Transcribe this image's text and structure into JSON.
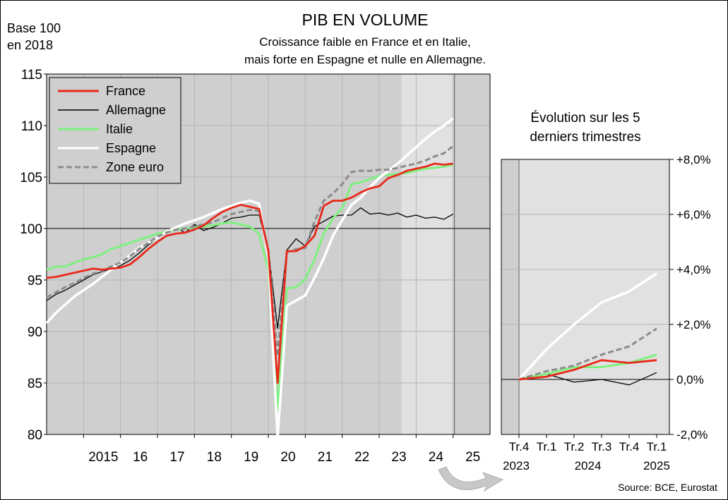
{
  "chart_data": [
    {
      "type": "line",
      "title": "PIB EN VOLUME",
      "subtitle": [
        "Croissance faible en France et en Italie,",
        "mais forte en Espagne et nulle en Allemagne."
      ],
      "ylabel": [
        "Base 100",
        "en 2018"
      ],
      "xlim": [
        2014,
        2026
      ],
      "ylim": [
        80,
        115
      ],
      "yticks": [
        80,
        85,
        90,
        95,
        100,
        105,
        110,
        115
      ],
      "xtick_labels": [
        {
          "x": 2015,
          "label": "2015"
        },
        {
          "x": 2016,
          "label": "16"
        },
        {
          "x": 2017,
          "label": "17"
        },
        {
          "x": 2018,
          "label": "18"
        },
        {
          "x": 2019,
          "label": "19"
        },
        {
          "x": 2020,
          "label": "20"
        },
        {
          "x": 2021,
          "label": "21"
        },
        {
          "x": 2022,
          "label": "22"
        },
        {
          "x": 2023,
          "label": "23"
        },
        {
          "x": 2024,
          "label": "24"
        },
        {
          "x": 2025,
          "label": "25"
        }
      ],
      "reference_line": 100,
      "shaded_recent": [
        2023.6,
        2025.0
      ],
      "grid": true,
      "legend_position": "top-left",
      "series": [
        {
          "name": "Allemagne",
          "color": "#000000",
          "width": 1.3,
          "dash": "",
          "x": [
            2014.0,
            2014.25,
            2014.5,
            2014.75,
            2015.0,
            2015.25,
            2015.5,
            2015.75,
            2016.0,
            2016.25,
            2016.5,
            2016.75,
            2017.0,
            2017.25,
            2017.5,
            2017.75,
            2018.0,
            2018.25,
            2018.5,
            2018.75,
            2019.0,
            2019.25,
            2019.5,
            2019.75,
            2020.0,
            2020.25,
            2020.5,
            2020.75,
            2021.0,
            2021.25,
            2021.5,
            2021.75,
            2022.0,
            2022.25,
            2022.5,
            2022.75,
            2023.0,
            2023.25,
            2023.5,
            2023.75,
            2024.0,
            2024.25,
            2024.5,
            2024.75,
            2025.0
          ],
          "y": [
            93.0,
            93.6,
            94.0,
            94.5,
            95.0,
            95.5,
            95.8,
            96.1,
            96.4,
            96.9,
            97.6,
            98.4,
            99.1,
            99.6,
            100.1,
            99.6,
            100.4,
            99.8,
            100.1,
            100.5,
            101.0,
            101.1,
            101.3,
            101.3,
            98.0,
            90.3,
            97.9,
            99.0,
            98.3,
            100.2,
            100.7,
            101.2,
            101.3,
            101.3,
            102.0,
            101.4,
            101.5,
            101.3,
            101.5,
            101.1,
            101.3,
            101.0,
            101.1,
            100.9,
            101.4
          ]
        },
        {
          "name": "Italie",
          "color": "#7ff07f",
          "width": 3.0,
          "dash": "",
          "x": [
            2014.0,
            2014.25,
            2014.5,
            2014.75,
            2015.0,
            2015.25,
            2015.5,
            2015.75,
            2016.0,
            2016.25,
            2016.5,
            2016.75,
            2017.0,
            2017.25,
            2017.5,
            2017.75,
            2018.0,
            2018.25,
            2018.5,
            2018.75,
            2019.0,
            2019.25,
            2019.5,
            2019.75,
            2020.0,
            2020.25,
            2020.5,
            2020.75,
            2021.0,
            2021.25,
            2021.5,
            2021.75,
            2022.0,
            2022.25,
            2022.5,
            2022.75,
            2023.0,
            2023.25,
            2023.5,
            2023.75,
            2024.0,
            2024.25,
            2024.5,
            2024.75,
            2025.0
          ],
          "y": [
            96.0,
            96.3,
            96.3,
            96.7,
            97.0,
            97.2,
            97.5,
            98.0,
            98.3,
            98.6,
            98.9,
            99.2,
            99.5,
            99.7,
            99.9,
            100.0,
            100.1,
            100.2,
            100.3,
            100.5,
            100.6,
            100.4,
            100.2,
            99.5,
            96.0,
            82.5,
            94.2,
            94.3,
            95.1,
            97.0,
            99.5,
            101.0,
            102.0,
            104.3,
            104.5,
            104.8,
            105.1,
            105.2,
            105.3,
            105.4,
            105.6,
            105.8,
            105.9,
            106.0,
            106.2
          ]
        },
        {
          "name": "Espagne",
          "color": "#ffffff",
          "width": 3.5,
          "dash": "",
          "x": [
            2014.0,
            2014.25,
            2014.5,
            2014.75,
            2015.0,
            2015.25,
            2015.5,
            2015.75,
            2016.0,
            2016.25,
            2016.5,
            2016.75,
            2017.0,
            2017.25,
            2017.5,
            2017.75,
            2018.0,
            2018.25,
            2018.5,
            2018.75,
            2019.0,
            2019.25,
            2019.5,
            2019.75,
            2020.0,
            2020.25,
            2020.5,
            2020.75,
            2021.0,
            2021.25,
            2021.5,
            2021.75,
            2022.0,
            2022.25,
            2022.5,
            2022.75,
            2023.0,
            2023.25,
            2023.5,
            2023.75,
            2024.0,
            2024.25,
            2024.5,
            2024.75,
            2025.0
          ],
          "y": [
            90.8,
            91.8,
            92.6,
            93.4,
            94.0,
            94.6,
            95.3,
            96.0,
            96.7,
            97.4,
            98.1,
            98.6,
            99.1,
            99.7,
            100.1,
            100.5,
            100.8,
            101.1,
            101.5,
            101.9,
            102.2,
            102.5,
            102.7,
            102.4,
            97.3,
            79.6,
            92.5,
            93.0,
            93.5,
            95.2,
            97.1,
            99.3,
            100.8,
            102.3,
            103.0,
            104.0,
            104.9,
            105.6,
            106.3,
            107.1,
            107.9,
            108.7,
            109.4,
            110.0,
            110.7
          ]
        },
        {
          "name": "Zone euro",
          "color": "#8c8c8c",
          "width": 3.0,
          "dash": "8,4",
          "x": [
            2014.0,
            2014.25,
            2014.5,
            2014.75,
            2015.0,
            2015.25,
            2015.5,
            2015.75,
            2016.0,
            2016.25,
            2016.5,
            2016.75,
            2017.0,
            2017.25,
            2017.5,
            2017.75,
            2018.0,
            2018.25,
            2018.5,
            2018.75,
            2019.0,
            2019.25,
            2019.5,
            2019.75,
            2020.0,
            2020.25,
            2020.5,
            2020.75,
            2021.0,
            2021.25,
            2021.5,
            2021.75,
            2022.0,
            2022.25,
            2022.5,
            2022.75,
            2023.0,
            2023.25,
            2023.5,
            2023.75,
            2024.0,
            2024.25,
            2024.5,
            2024.75,
            2025.0
          ],
          "y": [
            93.3,
            93.8,
            94.3,
            94.7,
            95.2,
            95.6,
            95.9,
            96.3,
            96.7,
            97.3,
            98.0,
            98.6,
            99.2,
            99.6,
            99.9,
            100.0,
            100.2,
            100.4,
            100.6,
            101.0,
            101.4,
            101.6,
            101.8,
            101.7,
            98.0,
            87.6,
            97.7,
            98.0,
            98.1,
            100.7,
            102.7,
            103.4,
            104.3,
            105.5,
            105.6,
            105.6,
            105.7,
            105.7,
            105.9,
            106.1,
            106.3,
            106.6,
            107.0,
            107.3,
            108.0
          ]
        },
        {
          "name": "France",
          "color": "#e8281a",
          "width": 2.8,
          "dash": "",
          "x": [
            2014.0,
            2014.25,
            2014.5,
            2014.75,
            2015.0,
            2015.25,
            2015.5,
            2015.75,
            2016.0,
            2016.25,
            2016.5,
            2016.75,
            2017.0,
            2017.25,
            2017.5,
            2017.75,
            2018.0,
            2018.25,
            2018.5,
            2018.75,
            2019.0,
            2019.25,
            2019.5,
            2019.75,
            2020.0,
            2020.25,
            2020.5,
            2020.75,
            2021.0,
            2021.25,
            2021.5,
            2021.75,
            2022.0,
            2022.25,
            2022.5,
            2022.75,
            2023.0,
            2023.25,
            2023.5,
            2023.75,
            2024.0,
            2024.25,
            2024.5,
            2024.75,
            2025.0
          ],
          "y": [
            95.2,
            95.3,
            95.5,
            95.7,
            95.9,
            96.1,
            96.0,
            96.1,
            96.2,
            96.5,
            97.2,
            98.0,
            98.7,
            99.3,
            99.5,
            99.6,
            99.9,
            100.3,
            101.0,
            101.6,
            102.0,
            102.3,
            102.1,
            101.9,
            97.8,
            85.0,
            97.8,
            97.8,
            98.3,
            99.3,
            102.2,
            102.7,
            102.7,
            103.0,
            103.5,
            103.9,
            104.1,
            104.9,
            105.2,
            105.6,
            105.8,
            106.0,
            106.3,
            106.2,
            106.3
          ]
        }
      ]
    },
    {
      "type": "line",
      "title": [
        "Évolution sur les 5",
        "derniers trimestres"
      ],
      "ylim": [
        -2.0,
        8.0
      ],
      "yticks": [
        -2,
        0,
        2,
        4,
        6,
        8
      ],
      "ytick_labels": [
        "-2,0%",
        "0,0%",
        "+2,0%",
        "+4,0%",
        "+6,0%",
        "+8,0%"
      ],
      "categories": [
        "Tr.4",
        "Tr.1",
        "Tr.2",
        "Tr.3",
        "Tr.4",
        "Tr.1"
      ],
      "year_labels": [
        {
          "category_index": 0,
          "label": "2023"
        },
        {
          "category_index": 2.5,
          "label": "2024"
        },
        {
          "category_index": 5,
          "label": "2025"
        }
      ],
      "reference_line": 0,
      "grid": true,
      "series": [
        {
          "name": "Allemagne",
          "color": "#000000",
          "width": 1.3,
          "dash": "",
          "values": [
            0.0,
            0.2,
            -0.1,
            0.0,
            -0.2,
            0.25
          ]
        },
        {
          "name": "Italie",
          "color": "#7ff07f",
          "width": 3.0,
          "dash": "",
          "values": [
            0.0,
            0.2,
            0.45,
            0.45,
            0.6,
            0.9
          ]
        },
        {
          "name": "Espagne",
          "color": "#ffffff",
          "width": 3.5,
          "dash": "",
          "values": [
            0.0,
            1.1,
            2.0,
            2.8,
            3.2,
            3.85
          ]
        },
        {
          "name": "Zone euro",
          "color": "#8c8c8c",
          "width": 3.0,
          "dash": "8,4",
          "values": [
            0.0,
            0.3,
            0.5,
            0.9,
            1.2,
            1.85
          ]
        },
        {
          "name": "France",
          "color": "#e8281a",
          "width": 2.8,
          "dash": "",
          "values": [
            0.0,
            0.1,
            0.35,
            0.7,
            0.6,
            0.7
          ]
        }
      ]
    }
  ],
  "legend": {
    "items": [
      {
        "label": "France",
        "color": "#e8281a",
        "dash": ""
      },
      {
        "label": "Allemagne",
        "color": "#000000",
        "dash": ""
      },
      {
        "label": "Italie",
        "color": "#7ff07f",
        "dash": ""
      },
      {
        "label": "Espagne",
        "color": "#ffffff",
        "dash": ""
      },
      {
        "label": "Zone euro",
        "color": "#8c8c8c",
        "dash": "8,4"
      }
    ]
  },
  "source": "Source: BCE, Eurostat",
  "colors": {
    "plot_bg": "#cfcfcf",
    "shade_bg": "#e1e1e1",
    "grid": "#b4b4b4",
    "arrow": "#c8c8c8"
  }
}
